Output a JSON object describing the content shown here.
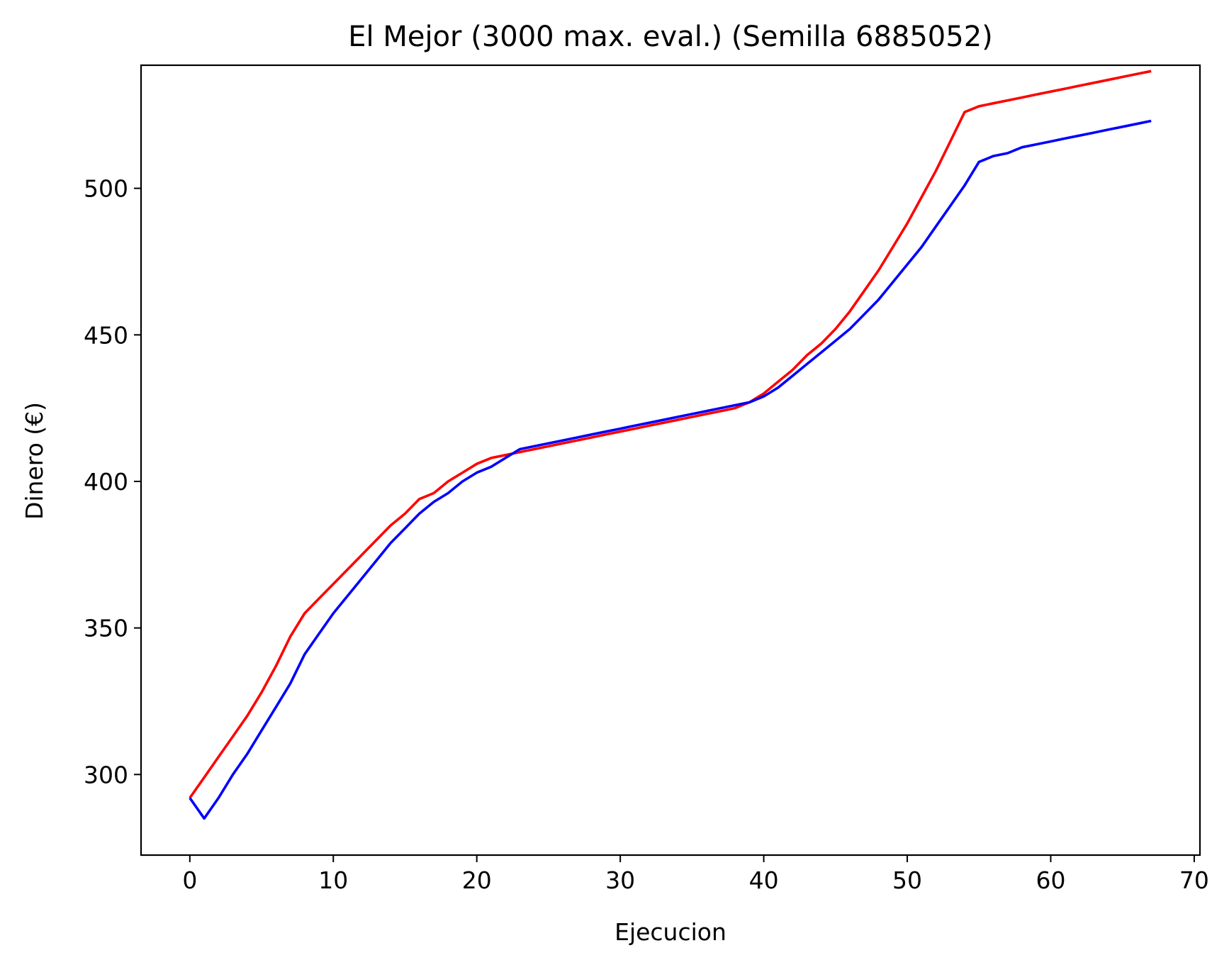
{
  "chart_data": {
    "type": "line",
    "title": "El Mejor (3000 max. eval.) (Semilla 6885052)",
    "xlabel": "Ejecucion",
    "ylabel": "Dinero (€)",
    "xlim": [
      -3.4,
      70.4
    ],
    "ylim": [
      272.5,
      542
    ],
    "xticks": [
      0,
      10,
      20,
      30,
      40,
      50,
      60,
      70
    ],
    "yticks": [
      300,
      350,
      400,
      450,
      500
    ],
    "grid": false,
    "legend": "none",
    "series": [
      {
        "color": "#ff0000",
        "x": [
          0,
          1,
          2,
          3,
          4,
          5,
          6,
          7,
          8,
          9,
          10,
          11,
          12,
          13,
          14,
          15,
          16,
          17,
          18,
          19,
          20,
          21,
          22,
          23,
          24,
          25,
          26,
          27,
          28,
          29,
          30,
          31,
          32,
          33,
          34,
          35,
          36,
          37,
          38,
          39,
          40,
          41,
          42,
          43,
          44,
          45,
          46,
          47,
          48,
          49,
          50,
          51,
          52,
          53,
          54,
          55,
          56,
          57,
          58,
          59,
          60,
          61,
          62,
          63,
          64,
          65,
          66,
          67
        ],
        "y": [
          292,
          299,
          306,
          313,
          320,
          328,
          337,
          347,
          355,
          360,
          365,
          370,
          375,
          380,
          385,
          389,
          394,
          396,
          400,
          403,
          406,
          408,
          409,
          410,
          411,
          412,
          413,
          414,
          415,
          416,
          417,
          418,
          419,
          420,
          421,
          422,
          423,
          424,
          425,
          427,
          430,
          434,
          438,
          443,
          447,
          452,
          458,
          465,
          472,
          480,
          488,
          497,
          506,
          516,
          526,
          528,
          529,
          530,
          531,
          532,
          533,
          534,
          535,
          536,
          537,
          538,
          539,
          540
        ]
      },
      {
        "color": "#0000ff",
        "x": [
          0,
          1,
          2,
          3,
          4,
          5,
          6,
          7,
          8,
          9,
          10,
          11,
          12,
          13,
          14,
          15,
          16,
          17,
          18,
          19,
          20,
          21,
          22,
          23,
          24,
          25,
          26,
          27,
          28,
          29,
          30,
          31,
          32,
          33,
          34,
          35,
          36,
          37,
          38,
          39,
          40,
          41,
          42,
          43,
          44,
          45,
          46,
          47,
          48,
          49,
          50,
          51,
          52,
          53,
          54,
          55,
          56,
          57,
          58,
          59,
          60,
          61,
          62,
          63,
          64,
          65,
          66,
          67
        ],
        "y": [
          292,
          285,
          292,
          300,
          307,
          315,
          323,
          331,
          341,
          348,
          355,
          361,
          367,
          373,
          379,
          384,
          389,
          393,
          396,
          400,
          403,
          405,
          408,
          411,
          412,
          413,
          414,
          415,
          416,
          417,
          418,
          419,
          420,
          421,
          422,
          423,
          424,
          425,
          426,
          427,
          429,
          432,
          436,
          440,
          444,
          448,
          452,
          457,
          462,
          468,
          474,
          480,
          487,
          494,
          501,
          509,
          511,
          512,
          514,
          515,
          516,
          517,
          518,
          519,
          520,
          521,
          522,
          523
        ]
      }
    ]
  }
}
